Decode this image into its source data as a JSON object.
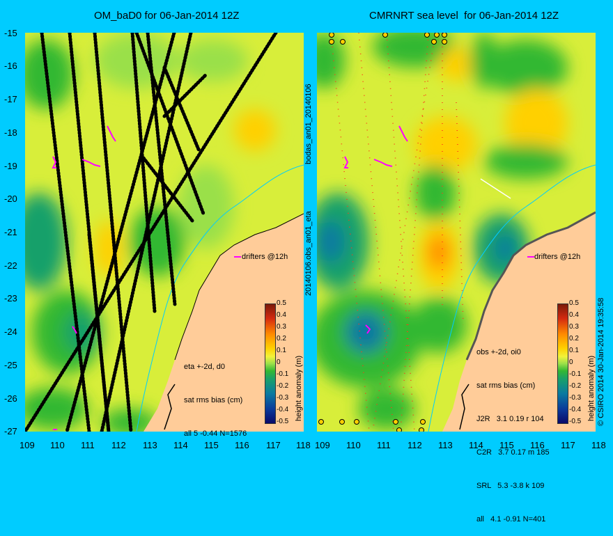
{
  "left_panel": {
    "title": "OM_baD0 for 06-Jan-2014 12Z",
    "side_label_top": "bodas_an01_20140106",
    "side_label_bottom": "20140106.obs_an01_eta",
    "annotation": {
      "line1": "eta +-2d, d0",
      "line2": "sat rms bias (cm)",
      "line3": "all 5 -0.44 N=1576"
    },
    "drifters_label": "drifters @12h"
  },
  "right_panel": {
    "title": "CMRNRT sea level  for 06-Jan-2014 12Z",
    "credit": "© CSIRO 2014   30-Jan-2014 19:35:58",
    "annotation": {
      "line1": "obs +-2d, oi0",
      "line2": "sat rms bias (cm)",
      "line3": "J2R   3.1 0.19 r 104",
      "line4": "C2R   3.7 0.17 m 185",
      "line5": "SRL   5.3 -3.8 k 109",
      "line6": "all   4.1 -0.91 N=401"
    },
    "drifters_label": "drifters @12h"
  },
  "axes": {
    "lat_ticks": [
      "-15",
      "-16",
      "-17",
      "-18",
      "-19",
      "-20",
      "-21",
      "-22",
      "-23",
      "-24",
      "-25",
      "-26",
      "-27"
    ],
    "lon_ticks_left": [
      "109",
      "110",
      "111",
      "112",
      "113",
      "114",
      "115",
      "116",
      "117",
      "118"
    ],
    "lon_ticks_right": [
      "109",
      "110",
      "111",
      "112",
      "113",
      "114",
      "115",
      "116",
      "117",
      "118"
    ]
  },
  "colorbar": {
    "label": "height anomaly (m)",
    "ticks": [
      "0.5",
      "0.4",
      "0.3",
      "0.2",
      "0.1",
      "0",
      "-0.1",
      "-0.2",
      "-0.3",
      "-0.4",
      "-0.5"
    ]
  },
  "colors": {
    "background": "#00ccff",
    "land": "#ffcc99",
    "ocean_base": "#d8ee3a",
    "drifter": "#ff00ff",
    "coast": "#00ccff"
  }
}
